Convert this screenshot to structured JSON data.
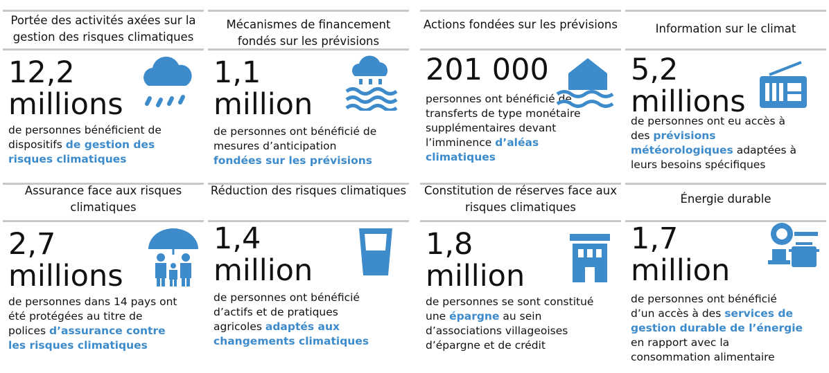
{
  "cards": [
    {
      "title": "Portée des activités axées sur la gestion des risques climatiques",
      "figure": [
        "12,2",
        "millions"
      ],
      "description": [
        "de personnes bénéficient de dispositifs ",
        "de gestion des risques climatiques"
      ]
    },
    {
      "title": "Mécanismes de financement fondés sur les prévisions",
      "figure": [
        "1,1",
        "million"
      ],
      "description": [
        "de personnes ont bénéficié de mesures d’anticipation ",
        "fondées sur les prévisions"
      ]
    },
    {
      "title": "Actions fondées sur les prévisions",
      "figure": [
        "201 000"
      ],
      "description": [
        "personnes ont bénéficié de transferts de type monétaire supplémentaires devant l’imminence ",
        "d’aléas climatiques"
      ]
    },
    {
      "title": "Information sur le climat",
      "figure": [
        "5,2",
        "millions"
      ],
      "description": [
        "de personnes ont eu accès à des ",
        "prévisions météorologiques",
        " adaptées à leurs besoins spécifiques"
      ]
    },
    {
      "title": "Assurance face aux risques climatiques",
      "figure": [
        "2,7",
        "millions"
      ],
      "description": [
        "de personnes dans 14 pays ont été protégées au titre de polices ",
        "d’assurance contre les risques climatiques"
      ]
    },
    {
      "title": "Réduction des risques climatiques",
      "figure": [
        "1,4",
        "million"
      ],
      "description": [
        "de personnes ont bénéficié d’actifs et de pratiques agricoles ",
        "adaptés aux changements climatiques"
      ]
    },
    {
      "title": "Constitution de réserves face aux risques climatiques",
      "figure": [
        "1,8",
        "million"
      ],
      "description": [
        "de personnes se sont constitué une ",
        "épargne",
        " au sein d’associations villageoises d’épargne et de crédit"
      ]
    },
    {
      "title": "Énergie durable",
      "figure": [
        "1,7",
        "million"
      ],
      "description": [
        "de personnes ont bénéficié d’un accès à des ",
        "services de gestion durable de l’énergie",
        " en rapport avec la consommation alimentaire"
      ]
    }
  ]
}
